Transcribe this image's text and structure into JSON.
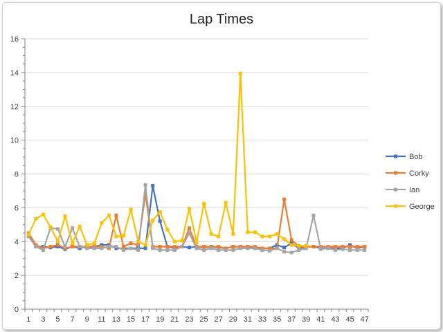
{
  "chart_data": {
    "type": "line",
    "title": "Lap Times",
    "xlabel": "",
    "ylabel": "",
    "ylim": [
      0,
      16
    ],
    "yticks": [
      0,
      2,
      4,
      6,
      8,
      10,
      12,
      14,
      16
    ],
    "x": [
      1,
      2,
      3,
      4,
      5,
      6,
      7,
      8,
      9,
      10,
      11,
      12,
      13,
      14,
      15,
      16,
      17,
      18,
      19,
      20,
      21,
      22,
      23,
      24,
      25,
      26,
      27,
      28,
      29,
      30,
      31,
      32,
      33,
      34,
      35,
      36,
      37,
      38,
      39,
      40,
      41,
      42,
      43,
      44,
      45,
      46,
      47
    ],
    "xtick_labels": [
      "1",
      "3",
      "5",
      "7",
      "9",
      "11",
      "13",
      "15",
      "17",
      "19",
      "21",
      "23",
      "25",
      "27",
      "29",
      "31",
      "33",
      "35",
      "37",
      "39",
      "41",
      "43",
      "45",
      "47"
    ],
    "grid": "horizontal",
    "legend": "right",
    "series": [
      {
        "name": "Bob",
        "color": "#4472C4",
        "values": [
          4.4,
          3.7,
          3.7,
          3.65,
          3.7,
          3.55,
          3.7,
          3.6,
          3.7,
          3.7,
          3.8,
          3.8,
          3.6,
          3.6,
          3.6,
          3.6,
          3.6,
          7.3,
          5.2,
          3.7,
          3.6,
          3.7,
          3.65,
          3.7,
          3.65,
          3.7,
          3.65,
          3.6,
          3.7,
          3.7,
          3.7,
          3.6,
          3.6,
          3.6,
          3.8,
          3.65,
          3.9,
          3.6,
          3.7,
          3.7,
          3.6,
          3.6,
          3.6,
          3.6,
          3.8,
          3.6,
          3.7
        ]
      },
      {
        "name": "Corky",
        "color": "#ED7D31",
        "values": [
          4.5,
          3.8,
          3.6,
          3.7,
          3.8,
          3.6,
          3.7,
          3.7,
          3.7,
          3.7,
          3.7,
          3.6,
          5.55,
          3.7,
          3.9,
          3.8,
          6.8,
          3.7,
          3.7,
          3.7,
          3.7,
          3.7,
          4.8,
          3.7,
          3.7,
          3.7,
          3.7,
          3.6,
          3.7,
          3.7,
          3.7,
          3.7,
          3.6,
          3.6,
          3.6,
          6.5,
          4.1,
          3.7,
          3.7,
          3.7,
          3.7,
          3.7,
          3.7,
          3.7,
          3.7,
          3.7,
          3.7
        ]
      },
      {
        "name": "Ian",
        "color": "#A5A5A5",
        "values": [
          4.3,
          3.7,
          3.5,
          4.8,
          4.75,
          3.7,
          4.8,
          3.7,
          3.6,
          3.6,
          3.6,
          3.7,
          3.7,
          3.5,
          3.6,
          3.5,
          7.35,
          3.6,
          3.5,
          3.5,
          3.5,
          3.7,
          4.5,
          3.6,
          3.5,
          3.6,
          3.5,
          3.5,
          3.5,
          3.6,
          3.6,
          3.6,
          3.5,
          3.45,
          3.6,
          3.4,
          3.35,
          3.5,
          3.6,
          5.55,
          3.55,
          3.6,
          3.5,
          3.55,
          3.5,
          3.5,
          3.5
        ]
      },
      {
        "name": "George",
        "color": "#FFC000",
        "values": [
          4.4,
          5.35,
          5.6,
          4.85,
          4.0,
          5.5,
          3.9,
          4.9,
          3.8,
          3.9,
          5.1,
          5.55,
          4.3,
          4.35,
          5.9,
          4.0,
          3.8,
          5.25,
          5.75,
          4.7,
          4.0,
          4.05,
          5.95,
          3.95,
          6.25,
          4.45,
          4.3,
          6.3,
          4.45,
          13.95,
          4.55,
          4.55,
          4.3,
          4.3,
          4.45,
          4.15,
          3.8,
          3.75,
          3.75,
          null,
          null,
          null,
          null,
          null,
          null,
          null,
          null
        ]
      }
    ]
  }
}
